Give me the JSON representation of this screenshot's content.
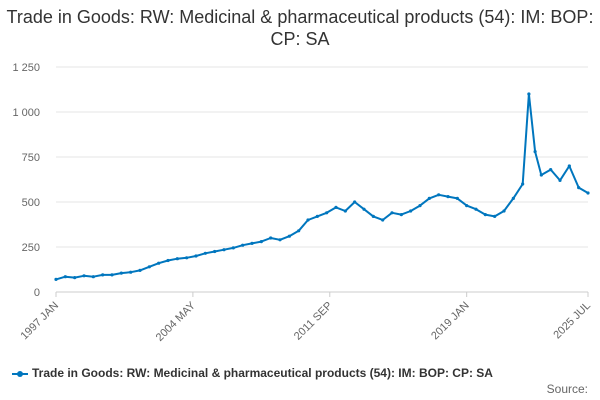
{
  "chart_data": {
    "type": "line",
    "title": "Trade in Goods: RW: Medicinal & pharmaceutical products (54): IM: BOP: CP: SA",
    "xlabel": "",
    "ylabel": "",
    "ylim": [
      0,
      1250
    ],
    "yticks": [
      0,
      250,
      500,
      750,
      1000,
      1250
    ],
    "ytick_labels": [
      "0",
      "250",
      "500",
      "750",
      "1 000",
      "1 250"
    ],
    "xticks": [
      {
        "label": "1997 JAN",
        "date": "1997-01"
      },
      {
        "label": "2004 MAY",
        "date": "2004-05"
      },
      {
        "label": "2011 SEP",
        "date": "2011-09"
      },
      {
        "label": "2019 JAN",
        "date": "2019-01"
      },
      {
        "label": "2025 JUL",
        "date": "2025-07"
      }
    ],
    "grid": true,
    "legend_position": "bottom-left",
    "series": [
      {
        "name": "Trade in Goods: RW: Medicinal & pharmaceutical products (54): IM: BOP: CP: SA",
        "color": "#0076be",
        "points": [
          [
            "1997-01",
            70
          ],
          [
            "1997-07",
            85
          ],
          [
            "1998-01",
            80
          ],
          [
            "1998-07",
            90
          ],
          [
            "1999-01",
            85
          ],
          [
            "1999-07",
            95
          ],
          [
            "2000-01",
            95
          ],
          [
            "2000-07",
            105
          ],
          [
            "2001-01",
            110
          ],
          [
            "2001-07",
            120
          ],
          [
            "2002-01",
            140
          ],
          [
            "2002-07",
            160
          ],
          [
            "2003-01",
            175
          ],
          [
            "2003-07",
            185
          ],
          [
            "2004-01",
            190
          ],
          [
            "2004-07",
            200
          ],
          [
            "2005-01",
            215
          ],
          [
            "2005-07",
            225
          ],
          [
            "2006-01",
            235
          ],
          [
            "2006-07",
            245
          ],
          [
            "2007-01",
            260
          ],
          [
            "2007-07",
            270
          ],
          [
            "2008-01",
            280
          ],
          [
            "2008-07",
            300
          ],
          [
            "2009-01",
            290
          ],
          [
            "2009-07",
            310
          ],
          [
            "2010-01",
            340
          ],
          [
            "2010-07",
            400
          ],
          [
            "2011-01",
            420
          ],
          [
            "2011-07",
            440
          ],
          [
            "2012-01",
            470
          ],
          [
            "2012-07",
            450
          ],
          [
            "2013-01",
            500
          ],
          [
            "2013-07",
            460
          ],
          [
            "2014-01",
            420
          ],
          [
            "2014-07",
            400
          ],
          [
            "2015-01",
            440
          ],
          [
            "2015-07",
            430
          ],
          [
            "2016-01",
            450
          ],
          [
            "2016-07",
            480
          ],
          [
            "2017-01",
            520
          ],
          [
            "2017-07",
            540
          ],
          [
            "2018-01",
            530
          ],
          [
            "2018-07",
            520
          ],
          [
            "2019-01",
            480
          ],
          [
            "2019-07",
            460
          ],
          [
            "2020-01",
            430
          ],
          [
            "2020-07",
            420
          ],
          [
            "2021-01",
            450
          ],
          [
            "2021-07",
            520
          ],
          [
            "2022-01",
            600
          ],
          [
            "2022-05",
            1100
          ],
          [
            "2022-09",
            780
          ],
          [
            "2023-01",
            650
          ],
          [
            "2023-07",
            680
          ],
          [
            "2024-01",
            620
          ],
          [
            "2024-07",
            700
          ],
          [
            "2025-01",
            580
          ],
          [
            "2025-07",
            550
          ]
        ]
      }
    ]
  },
  "legend": {
    "label": "Trade in Goods: RW: Medicinal & pharmaceutical products (54): IM: BOP: CP: SA"
  },
  "footer": {
    "source_label": "Source:"
  }
}
